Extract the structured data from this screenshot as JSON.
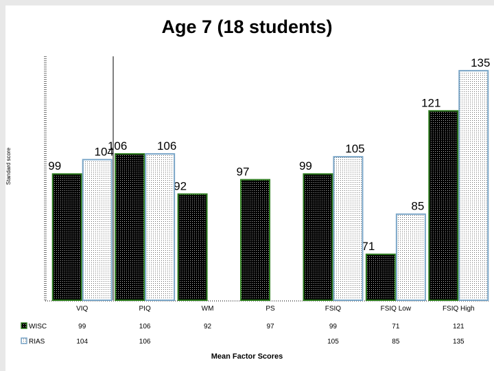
{
  "chart_data": {
    "type": "bar",
    "title": "Age 7 (18 students)",
    "xlabel": "Mean Factor Scores",
    "ylabel": "Standard score",
    "categories": [
      "VIQ",
      "PIQ",
      "WM",
      "PS",
      "FSIQ",
      "FSIQ Low",
      "FSIQ High"
    ],
    "series": [
      {
        "name": "WISC",
        "values": [
          99,
          106,
          92,
          97,
          99,
          71,
          121
        ],
        "color": "#000000",
        "border": "#2e7d1f"
      },
      {
        "name": "RIAS",
        "values": [
          104,
          106,
          null,
          null,
          105,
          85,
          135
        ],
        "color": "#ffffff",
        "border": "#7aa6c8"
      }
    ],
    "table_rows": [
      {
        "name": "WISC",
        "cells": [
          "99",
          "106",
          "92",
          "97",
          "99",
          "71",
          "121"
        ]
      },
      {
        "name": "RIAS",
        "cells": [
          "104",
          "106",
          "",
          "",
          "105",
          "85",
          "135"
        ]
      }
    ],
    "ylim": [
      55,
      140
    ],
    "grid": false,
    "legend": "table-left"
  }
}
